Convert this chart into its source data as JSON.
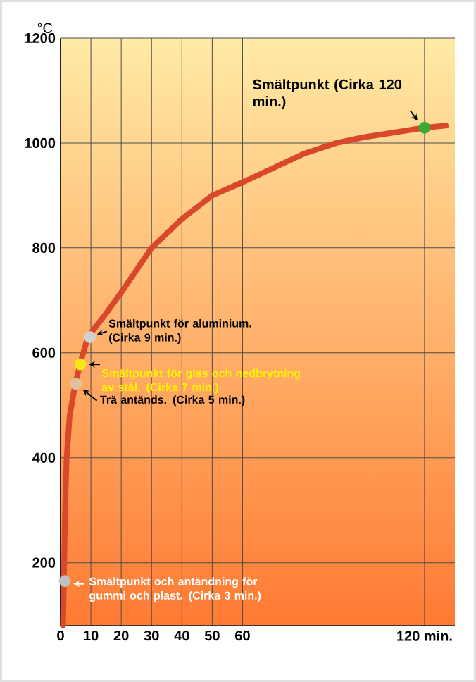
{
  "chart_data": {
    "type": "line",
    "ylabel": "°C",
    "xlim": [
      0,
      130
    ],
    "ylim": [
      80,
      1200
    ],
    "xticks": [
      0,
      10,
      20,
      30,
      40,
      50,
      60,
      {
        "value": 120,
        "label": "120 min."
      }
    ],
    "yticks": [
      200,
      400,
      600,
      800,
      1000,
      1200
    ],
    "grid": true,
    "series": [
      {
        "color": "#d9482a",
        "x": [
          0.8,
          1.0,
          1.2,
          1.5,
          2,
          3,
          5,
          7,
          9,
          15,
          20,
          30,
          40,
          50,
          60,
          80,
          91,
          100,
          120,
          127
        ],
        "values": [
          80,
          130,
          200,
          300,
          400,
          480,
          545,
          590,
          630,
          675,
          715,
          800,
          855,
          900,
          925,
          979,
          1000,
          1011,
          1029,
          1033
        ]
      },
      {
        "type": "scatter",
        "x": [
          120,
          9.7,
          6.5,
          5,
          1.4
        ],
        "values": [
          1029,
          630,
          578,
          541,
          165
        ],
        "colors": [
          "#3aa935",
          "#d0d0d0",
          "#f5e61a",
          "#e0c2a0",
          "#c0c0c0"
        ]
      }
    ],
    "annotations": [
      {
        "text": "Smältpunkt (Cirka 120 min.)",
        "x": 120,
        "y": 1029
      },
      {
        "text": "Smältpunkt för aluminium. (Cirka 9 min.)",
        "x": 9.7,
        "y": 630
      },
      {
        "text": "Smältpunkt för glas och nedbrytning av stål. (Cirka 7 min.)",
        "x": 6.5,
        "y": 578
      },
      {
        "text": "Trä antänds. (Cirka 5 min.)",
        "x": 5,
        "y": 541
      },
      {
        "text": "Smältpunkt och antändning för gummi och plast. (Cirka 3 min.)",
        "x": 1.4,
        "y": 165
      }
    ]
  }
}
